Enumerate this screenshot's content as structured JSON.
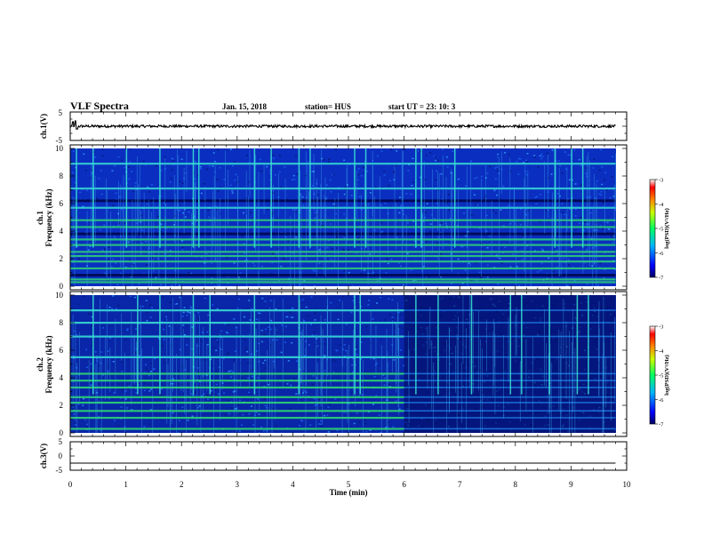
{
  "header": {
    "title": "VLF Spectra",
    "date": "Jan. 15, 2018",
    "station": "station= HUS",
    "start": "start  UT =   23: 10: 3"
  },
  "chart_data": [
    {
      "type": "line",
      "name": "ch1-waveform",
      "ylabel": "ch.1(V)",
      "ylim": [
        -5,
        5
      ],
      "yticks": [
        5,
        -5
      ],
      "xlim": [
        0,
        10
      ],
      "baseline": 0,
      "spikes": [
        {
          "x": 0.05,
          "y": 1.6
        },
        {
          "x": 0.09,
          "y": 1.9
        },
        {
          "x": 0.12,
          "y": -1.0
        }
      ]
    },
    {
      "type": "heatmap",
      "name": "ch1-spectrogram",
      "ylabel": "ch.1 Frequency (kHz)",
      "ylabel_lines": [
        "ch.1",
        "Frequency  (kHz)"
      ],
      "ylim": [
        0,
        10
      ],
      "yticks": [
        0,
        2,
        4,
        6,
        8,
        10
      ],
      "xlim": [
        0,
        10
      ],
      "data_end_min": 9.8,
      "colorbar": {
        "label": "log(PSD)(V²/Hz)",
        "range": [
          -7,
          -3
        ],
        "ticks": [
          -3,
          -4,
          -5,
          -6,
          -7
        ]
      },
      "bands_khz": [
        0.3,
        0.5,
        1.3,
        1.8,
        2.2,
        2.5,
        3.0,
        3.4,
        4.3,
        4.8,
        5.7,
        7.1,
        8.9
      ],
      "dark_bands_khz": [
        0.8,
        3.8,
        6.2
      ],
      "bright_bursts_min": [
        0.1,
        0.4,
        1.0,
        1.6,
        2.2,
        2.3,
        3.3,
        3.6,
        4.1,
        4.3,
        5.1,
        5.3,
        6.2,
        6.3,
        6.9,
        8.7,
        9.0,
        9.2
      ]
    },
    {
      "type": "heatmap",
      "name": "ch2-spectrogram",
      "ylabel": "ch.2 Frequency (kHz)",
      "ylabel_lines": [
        "ch.2",
        "Frequency  (kHz)"
      ],
      "ylim": [
        0,
        10
      ],
      "yticks": [
        0,
        2,
        4,
        6,
        8,
        10
      ],
      "xlim": [
        0,
        10
      ],
      "data_end_min": 9.8,
      "colorbar": {
        "label": "log(PSD)(V²/Hz)",
        "range": [
          -7,
          -3
        ],
        "ticks": [
          -3,
          -4,
          -5,
          -6,
          -7
        ]
      },
      "bands_khz": [
        0.3,
        1.1,
        1.6,
        2.2,
        2.6,
        3.3,
        3.8,
        4.3,
        5.5,
        7.0,
        8.0,
        8.9
      ],
      "band_fade_start_min": 6.0,
      "bright_bursts_min": [
        0.4,
        1.2,
        1.6,
        2.2,
        2.5,
        3.3,
        4.1,
        5.1,
        5.2,
        6.2,
        6.6,
        7.2,
        7.9,
        8.1,
        8.6,
        9.1,
        9.3
      ]
    },
    {
      "type": "line",
      "name": "ch3-waveform",
      "ylabel": "ch.3(V)",
      "ylim": [
        -5,
        5
      ],
      "yticks": [
        5,
        0,
        -5
      ],
      "xlim": [
        0,
        10
      ],
      "baseline": -2.5
    }
  ],
  "xaxis": {
    "label": "Time  (min)",
    "ticks": [
      0,
      1,
      2,
      3,
      4,
      5,
      6,
      7,
      8,
      9,
      10
    ]
  },
  "colors": {
    "spectro_bg": "#0a2fc0",
    "spectro_dark": "#000a5a",
    "spectro_band": "#2ee070",
    "spectro_cyan": "#3ae6d6"
  }
}
